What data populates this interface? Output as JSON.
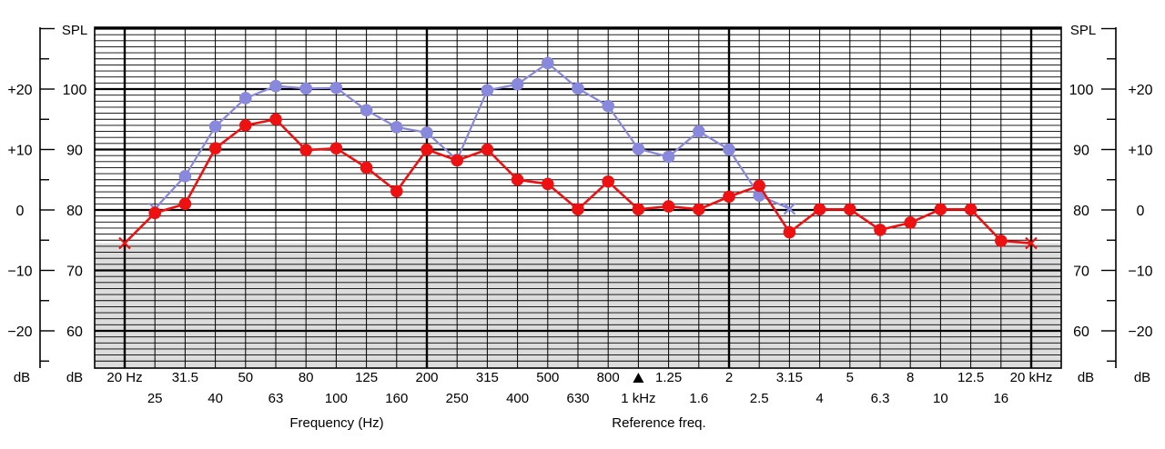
{
  "chart_data": {
    "type": "line",
    "x_categories": [
      "20 Hz",
      "25",
      "31.5",
      "40",
      "50",
      "63",
      "80",
      "100",
      "125",
      "160",
      "200",
      "250",
      "315",
      "400",
      "500",
      "630",
      "800",
      "1 kHz",
      "1.25",
      "1.6",
      "2",
      "2.5",
      "3.15",
      "4",
      "5",
      "6.3",
      "8",
      "10",
      "12.5",
      "16",
      "20 kHz"
    ],
    "x_top_labels": [
      "20 Hz",
      "31.5",
      "50",
      "80",
      "125",
      "200",
      "315",
      "500",
      "800",
      "1.25",
      "2",
      "3.15",
      "5",
      "8",
      "12.5",
      "20 kHz"
    ],
    "x_bottom_labels": [
      "25",
      "40",
      "63",
      "100",
      "160",
      "250",
      "400",
      "630",
      "1 kHz",
      "1.6",
      "2.5",
      "4",
      "6.3",
      "10",
      "16"
    ],
    "xlabel": "Frequency (Hz)",
    "reference_label": "Reference freq.",
    "left_db_ticks": [
      "+20",
      "+10",
      "0",
      "−10",
      "−20"
    ],
    "left_db_values": [
      20,
      10,
      0,
      -10,
      -20
    ],
    "spl_ticks": [
      "100",
      "90",
      "80",
      "70",
      "60"
    ],
    "spl_values": [
      100,
      90,
      80,
      70,
      60
    ],
    "right_db_ticks": [
      "+20",
      "+10",
      "0",
      "−10",
      "−20"
    ],
    "axis_title_spl": "SPL",
    "axis_unit_db": "dB",
    "ylim_spl": [
      55,
      110
    ],
    "shaded_below_spl": 74.5,
    "grid": true,
    "series": [
      {
        "color": "#8888dd",
        "values": [
          null,
          80.2,
          85.6,
          93.8,
          98.5,
          100.5,
          100.1,
          100.2,
          96.5,
          93.7,
          92.8,
          88.3,
          99.8,
          100.8,
          104.3,
          100.1,
          97.2,
          90.1,
          88.8,
          93.0,
          90.0,
          82.4,
          80.2,
          null,
          null,
          null,
          null,
          null,
          null,
          null,
          null
        ],
        "end_markers": [
          1,
          22
        ]
      },
      {
        "color": "#ee1111",
        "values": [
          74.5,
          79.5,
          81.0,
          90.2,
          94.0,
          95.0,
          89.9,
          90.2,
          87.0,
          83.1,
          90.0,
          88.2,
          90.0,
          85.0,
          84.3,
          80.1,
          84.7,
          80.1,
          80.6,
          80.1,
          82.2,
          84.0,
          76.3,
          80.1,
          80.1,
          76.7,
          77.9,
          80.1,
          80.1,
          74.9,
          74.5
        ],
        "end_markers": [
          0,
          30
        ]
      }
    ]
  }
}
